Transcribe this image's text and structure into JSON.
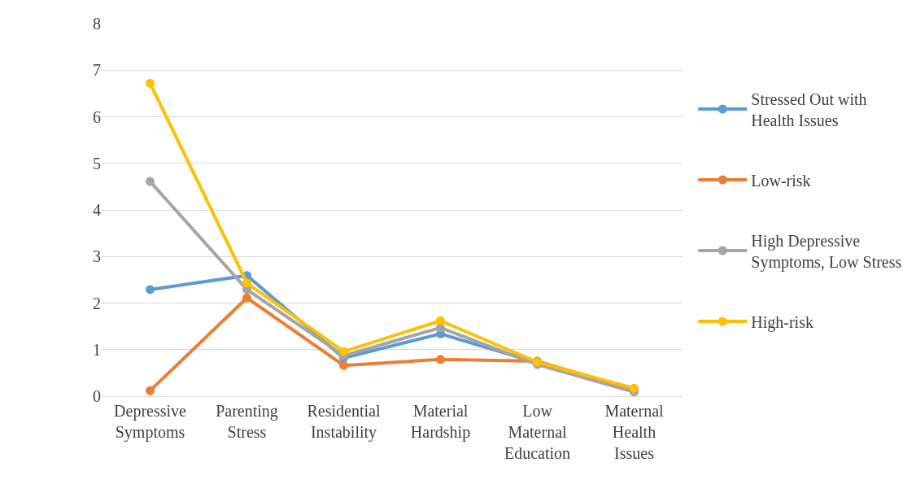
{
  "chart_data": {
    "type": "line",
    "categories": [
      "Depressive Symptoms",
      "Parenting Stress",
      "Residential Instability",
      "Material Hardship",
      "Low Maternal Education",
      "Maternal Health Issues"
    ],
    "series": [
      {
        "name": "Stressed Out with Health Issues",
        "color": "#5b9bd5",
        "values": [
          2.29,
          2.59,
          0.82,
          1.34,
          0.72,
          0.12
        ]
      },
      {
        "name": "Low-risk",
        "color": "#ed7d31",
        "values": [
          0.12,
          2.11,
          0.66,
          0.79,
          0.75,
          0.14
        ]
      },
      {
        "name": "High Depressive Symptoms, Low Stress",
        "color": "#a5a5a5",
        "values": [
          4.61,
          2.29,
          0.87,
          1.47,
          0.68,
          0.09
        ]
      },
      {
        "name": "High-risk",
        "color": "#ffc000",
        "values": [
          6.72,
          2.43,
          0.96,
          1.62,
          0.73,
          0.17
        ]
      }
    ],
    "ylim": [
      0,
      8
    ],
    "yticks": [
      0,
      1,
      2,
      3,
      4,
      5,
      6,
      7,
      8
    ],
    "grid": "y",
    "legend": "right",
    "marker": "circle",
    "line_style": "solid"
  }
}
